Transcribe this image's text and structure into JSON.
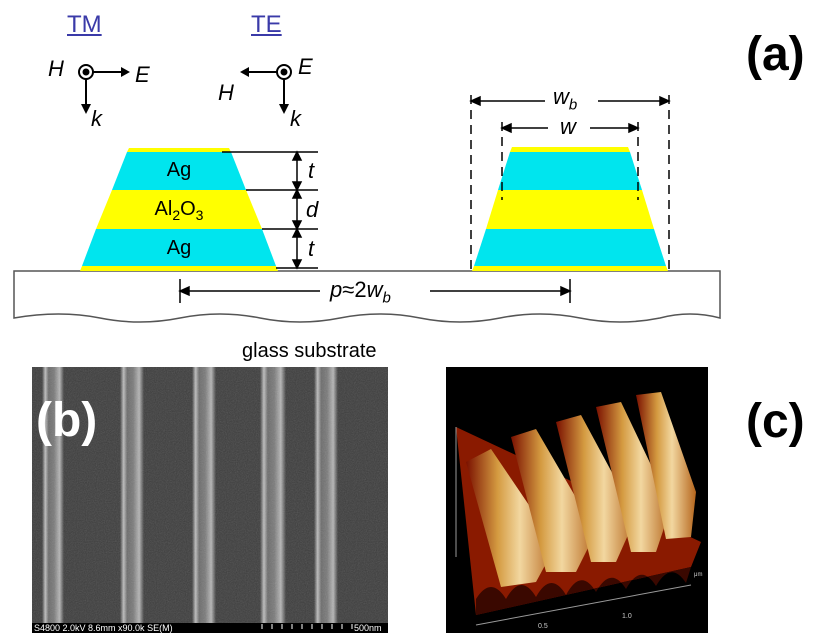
{
  "panel_a": {
    "label": "(a)",
    "tm": {
      "title": "TM",
      "h": "H",
      "e": "E",
      "k": "k"
    },
    "te": {
      "title": "TE",
      "h": "H",
      "e": "E",
      "k": "k"
    },
    "layers": {
      "top": "Ag",
      "middle_base": "Al",
      "middle_sub1": "2",
      "middle_mid": "O",
      "middle_sub2": "3",
      "bottom": "Ag"
    },
    "dims": {
      "t_top": "t",
      "d": "d",
      "t_bottom": "t",
      "w_b": "w",
      "w_b_sub": "b",
      "w": "w",
      "p_prefix": "p",
      "p_approx": "≈2",
      "p_w": "w",
      "p_sub": "b"
    },
    "substrate_caption": "glass substrate",
    "colors": {
      "silver": "#00e5ee",
      "dielectric": "#ffff00",
      "substrate": "#ffffff"
    }
  },
  "panel_b": {
    "label": "(b)",
    "sem_info": "S4800 2.0kV 8.6mm x90.0k SE(M)",
    "scale_label": "500nm"
  },
  "panel_c": {
    "label": "(c)",
    "axis_labels": {
      "unit": "μm",
      "tick_1": "1.0",
      "tick_2": "0.5"
    }
  }
}
